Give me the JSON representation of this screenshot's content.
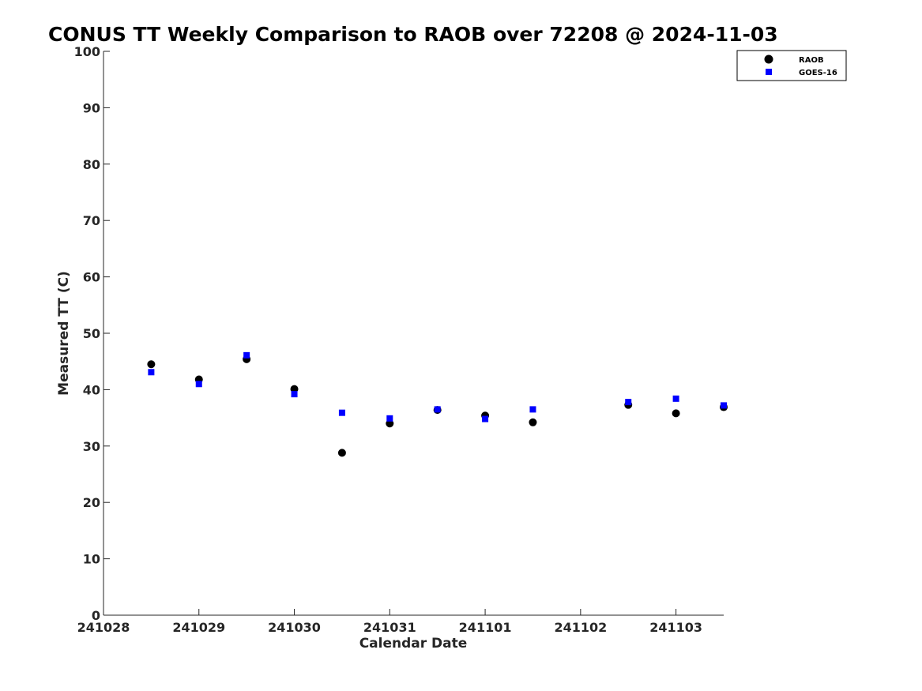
{
  "chart_data": {
    "type": "scatter",
    "title": "CONUS TT Weekly Comparison to RAOB over 72208 @ 2024-11-03",
    "xlabel": "Calendar Date",
    "ylabel": "Measured TT (C)",
    "ylim": [
      0,
      100
    ],
    "yticks": [
      0,
      10,
      20,
      30,
      40,
      50,
      60,
      70,
      80,
      90,
      100
    ],
    "xtick_labels": [
      "241028",
      "241029",
      "241030",
      "241031",
      "241101",
      "241102",
      "241103"
    ],
    "xlim": [
      0,
      6.5
    ],
    "grid": false,
    "legend_position": "top-right",
    "series": [
      {
        "name": "RAOB",
        "marker": "circle",
        "color": "#000000",
        "points": [
          {
            "x": 0.5,
            "y": 44.5
          },
          {
            "x": 1.0,
            "y": 41.8
          },
          {
            "x": 1.5,
            "y": 45.4
          },
          {
            "x": 2.0,
            "y": 40.1
          },
          {
            "x": 2.5,
            "y": 28.8
          },
          {
            "x": 3.0,
            "y": 34.0
          },
          {
            "x": 3.5,
            "y": 36.4
          },
          {
            "x": 4.0,
            "y": 35.4
          },
          {
            "x": 4.5,
            "y": 34.2
          },
          {
            "x": 5.5,
            "y": 37.3
          },
          {
            "x": 6.0,
            "y": 35.8
          },
          {
            "x": 6.5,
            "y": 36.9
          }
        ]
      },
      {
        "name": "GOES-16",
        "marker": "square",
        "color": "#0000ff",
        "points": [
          {
            "x": 0.5,
            "y": 43.1
          },
          {
            "x": 1.0,
            "y": 41.0
          },
          {
            "x": 1.5,
            "y": 46.1
          },
          {
            "x": 2.0,
            "y": 39.2
          },
          {
            "x": 2.5,
            "y": 35.9
          },
          {
            "x": 3.0,
            "y": 34.9
          },
          {
            "x": 3.5,
            "y": 36.5
          },
          {
            "x": 4.0,
            "y": 34.8
          },
          {
            "x": 4.5,
            "y": 36.5
          },
          {
            "x": 5.5,
            "y": 37.8
          },
          {
            "x": 6.0,
            "y": 38.4
          },
          {
            "x": 6.5,
            "y": 37.2
          }
        ]
      }
    ]
  }
}
